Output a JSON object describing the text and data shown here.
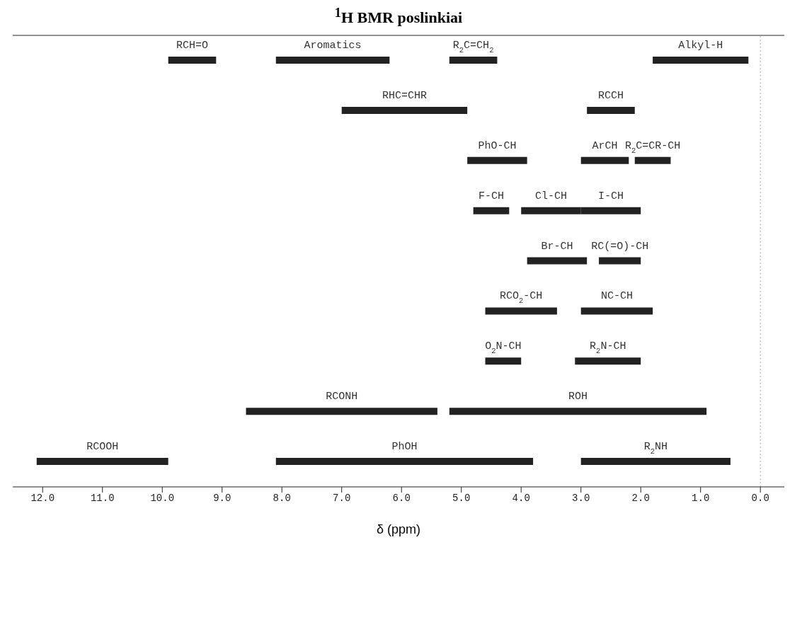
{
  "chart_data": {
    "type": "bar",
    "orientation": "horizontal",
    "title": "$^{1}$H BMR poslinkiai",
    "xlabel": "δ (ppm)",
    "categories": [
      null,
      null,
      null,
      null,
      null,
      null,
      null,
      null,
      null
    ],
    "xlim": [
      12.5,
      -0.4
    ],
    "xticks": [
      {
        "value": 12,
        "label": "12.0"
      },
      {
        "value": 11,
        "label": "11.0"
      },
      {
        "value": 10,
        "label": "10.0"
      },
      {
        "value": 9,
        "label": "9.0"
      },
      {
        "value": 8,
        "label": "8.0"
      },
      {
        "value": 7,
        "label": "7.0"
      },
      {
        "value": 6,
        "label": "6.0"
      },
      {
        "value": 5,
        "label": "5.0"
      },
      {
        "value": 4,
        "label": "4.0"
      },
      {
        "value": 3,
        "label": "3.0"
      },
      {
        "value": 2,
        "label": "2.0"
      },
      {
        "value": 1,
        "label": "1.0"
      },
      {
        "value": 0,
        "label": "0.0"
      }
    ],
    "grid": false,
    "legend": false,
    "ref_lines": [
      {
        "axis": "x",
        "value": 0,
        "color": "#aaaaaa",
        "line_style": "dotted"
      }
    ],
    "series": [
      {
        "name": "RCH=O",
        "color": "#222222",
        "values": [
          0.8,
          null,
          null,
          null,
          null,
          null,
          null,
          null,
          null
        ],
        "base": [
          9.1,
          null,
          null,
          null,
          null,
          null,
          null,
          null,
          null
        ]
      },
      {
        "name": "Aromatics",
        "color": "#222222",
        "values": [
          1.9,
          null,
          null,
          null,
          null,
          null,
          null,
          null,
          null
        ],
        "base": [
          6.2,
          null,
          null,
          null,
          null,
          null,
          null,
          null,
          null
        ]
      },
      {
        "name": "R$_{2}$C=CH$_{2}$",
        "color": "#222222",
        "values": [
          0.8,
          null,
          null,
          null,
          null,
          null,
          null,
          null,
          null
        ],
        "base": [
          4.4,
          null,
          null,
          null,
          null,
          null,
          null,
          null,
          null
        ]
      },
      {
        "name": "Alkyl-H",
        "color": "#222222",
        "values": [
          1.6,
          null,
          null,
          null,
          null,
          null,
          null,
          null,
          null
        ],
        "base": [
          0.2,
          null,
          null,
          null,
          null,
          null,
          null,
          null,
          null
        ]
      },
      {
        "name": "RHC=CHR",
        "color": "#222222",
        "values": [
          null,
          2.1,
          null,
          null,
          null,
          null,
          null,
          null,
          null
        ],
        "base": [
          null,
          4.9,
          null,
          null,
          null,
          null,
          null,
          null,
          null
        ]
      },
      {
        "name": "RCCH",
        "color": "#222222",
        "values": [
          null,
          0.8,
          null,
          null,
          null,
          null,
          null,
          null,
          null
        ],
        "base": [
          null,
          2.1,
          null,
          null,
          null,
          null,
          null,
          null,
          null
        ]
      },
      {
        "name": "PhO-CH",
        "color": "#222222",
        "values": [
          null,
          null,
          1.0,
          null,
          null,
          null,
          null,
          null,
          null
        ],
        "base": [
          null,
          null,
          3.9,
          null,
          null,
          null,
          null,
          null,
          null
        ]
      },
      {
        "name": "ArCH",
        "color": "#222222",
        "values": [
          null,
          null,
          0.8,
          null,
          null,
          null,
          null,
          null,
          null
        ],
        "base": [
          null,
          null,
          2.2,
          null,
          null,
          null,
          null,
          null,
          null
        ]
      },
      {
        "name": "R$_{2}$C=CR-CH",
        "color": "#222222",
        "values": [
          null,
          null,
          0.6,
          null,
          null,
          null,
          null,
          null,
          null
        ],
        "base": [
          null,
          null,
          1.5,
          null,
          null,
          null,
          null,
          null,
          null
        ]
      },
      {
        "name": "F-CH",
        "color": "#222222",
        "values": [
          null,
          null,
          null,
          0.6,
          null,
          null,
          null,
          null,
          null
        ],
        "base": [
          null,
          null,
          null,
          4.2,
          null,
          null,
          null,
          null,
          null
        ]
      },
      {
        "name": "Cl-CH",
        "color": "#222222",
        "values": [
          null,
          null,
          null,
          1.0,
          null,
          null,
          null,
          null,
          null
        ],
        "base": [
          null,
          null,
          null,
          3.0,
          null,
          null,
          null,
          null,
          null
        ]
      },
      {
        "name": "I-CH",
        "color": "#222222",
        "values": [
          null,
          null,
          null,
          1.0,
          null,
          null,
          null,
          null,
          null
        ],
        "base": [
          null,
          null,
          null,
          2.0,
          null,
          null,
          null,
          null,
          null
        ]
      },
      {
        "name": "Br-CH",
        "color": "#222222",
        "values": [
          null,
          null,
          null,
          null,
          1.0,
          null,
          null,
          null,
          null
        ],
        "base": [
          null,
          null,
          null,
          null,
          2.9,
          null,
          null,
          null,
          null
        ]
      },
      {
        "name": "RC(=O)-CH",
        "color": "#222222",
        "values": [
          null,
          null,
          null,
          null,
          0.7,
          null,
          null,
          null,
          null
        ],
        "base": [
          null,
          null,
          null,
          null,
          2.0,
          null,
          null,
          null,
          null
        ]
      },
      {
        "name": "RCO$_{2}$-CH",
        "color": "#222222",
        "values": [
          null,
          null,
          null,
          null,
          null,
          1.2,
          null,
          null,
          null
        ],
        "base": [
          null,
          null,
          null,
          null,
          null,
          3.4,
          null,
          null,
          null
        ]
      },
      {
        "name": "NC-CH",
        "color": "#222222",
        "values": [
          null,
          null,
          null,
          null,
          null,
          1.2,
          null,
          null,
          null
        ],
        "base": [
          null,
          null,
          null,
          null,
          null,
          1.8,
          null,
          null,
          null
        ]
      },
      {
        "name": "O$_{2}$N-CH",
        "color": "#222222",
        "values": [
          null,
          null,
          null,
          null,
          null,
          null,
          0.6,
          null,
          null
        ],
        "base": [
          null,
          null,
          null,
          null,
          null,
          null,
          4.0,
          null,
          null
        ]
      },
      {
        "name": "R$_{2}$N-CH",
        "color": "#222222",
        "values": [
          null,
          null,
          null,
          null,
          null,
          null,
          1.1,
          null,
          null
        ],
        "base": [
          null,
          null,
          null,
          null,
          null,
          null,
          2.0,
          null,
          null
        ]
      },
      {
        "name": "RCONH",
        "color": "#222222",
        "values": [
          null,
          null,
          null,
          null,
          null,
          null,
          null,
          3.2,
          null
        ],
        "base": [
          null,
          null,
          null,
          null,
          null,
          null,
          null,
          5.4,
          null
        ]
      },
      {
        "name": "ROH",
        "color": "#222222",
        "values": [
          null,
          null,
          null,
          null,
          null,
          null,
          null,
          4.3,
          null
        ],
        "base": [
          null,
          null,
          null,
          null,
          null,
          null,
          null,
          0.9,
          null
        ]
      },
      {
        "name": "RCOOH",
        "color": "#222222",
        "values": [
          null,
          null,
          null,
          null,
          null,
          null,
          null,
          null,
          2.2
        ],
        "base": [
          null,
          null,
          null,
          null,
          null,
          null,
          null,
          null,
          9.9
        ]
      },
      {
        "name": "PhOH",
        "color": "#222222",
        "values": [
          null,
          null,
          null,
          null,
          null,
          null,
          null,
          null,
          4.3
        ],
        "base": [
          null,
          null,
          null,
          null,
          null,
          null,
          null,
          null,
          3.8
        ]
      },
      {
        "name": "R$_{2}$NH",
        "color": "#222222",
        "values": [
          null,
          null,
          null,
          null,
          null,
          null,
          null,
          null,
          2.5
        ],
        "base": [
          null,
          null,
          null,
          null,
          null,
          null,
          null,
          null,
          0.5
        ]
      }
    ]
  }
}
